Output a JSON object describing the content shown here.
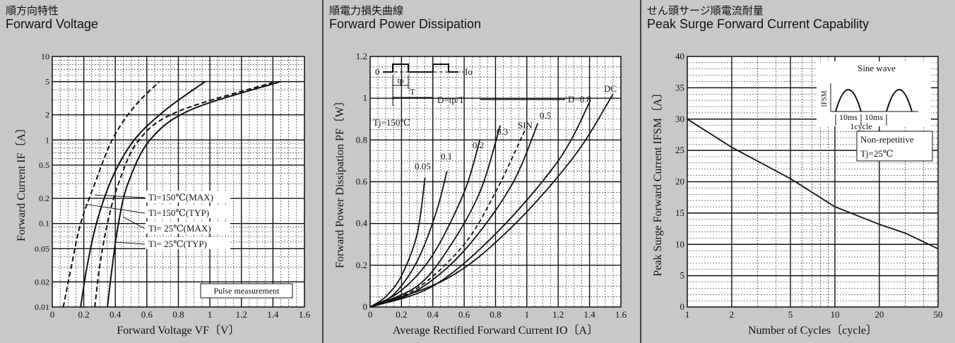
{
  "charts": [
    {
      "title_jp": "順方向特性",
      "title_en": "Forward Voltage"
    },
    {
      "title_jp": "順電力損失曲線",
      "title_en": "Forward Power Dissipation"
    },
    {
      "title_jp": "せん頭サージ順電流耐量",
      "title_en": "Peak Surge Forward Current Capability"
    }
  ],
  "chart_data": [
    {
      "type": "line",
      "title": "Forward Voltage",
      "xlabel": "Forward Voltage  VF〔V〕",
      "ylabel": "Forward Current  IF〔A〕",
      "xscale": "linear",
      "yscale": "log",
      "xlim": [
        0,
        1.6
      ],
      "ylim": [
        0.01,
        10
      ],
      "x_ticks": [
        "0",
        "0.2",
        "0.4",
        "0.6",
        "0.8",
        "1",
        "1.2",
        "1.4",
        "1.6"
      ],
      "y_ticks": [
        "0.01",
        "0.02",
        "0.05",
        "0.1",
        "0.2",
        "0.5",
        "1",
        "2",
        "5",
        "10"
      ],
      "grid": true,
      "series": [
        {
          "name": "Tl=150℃(MAX)",
          "style": "dashed",
          "points": [
            [
              0.07,
              0.01
            ],
            [
              0.12,
              0.03
            ],
            [
              0.18,
              0.1
            ],
            [
              0.27,
              0.3
            ],
            [
              0.38,
              1.0
            ],
            [
              0.52,
              2.5
            ],
            [
              0.68,
              5.0
            ]
          ]
        },
        {
          "name": "Tl=150℃(TYP)",
          "style": "solid",
          "points": [
            [
              0.18,
              0.01
            ],
            [
              0.22,
              0.03
            ],
            [
              0.28,
              0.1
            ],
            [
              0.38,
              0.35
            ],
            [
              0.52,
              1.0
            ],
            [
              0.72,
              2.3
            ],
            [
              0.97,
              5.0
            ]
          ]
        },
        {
          "name": "Tl= 25℃(MAX)",
          "style": "dashed",
          "points": [
            [
              0.27,
              0.01
            ],
            [
              0.3,
              0.03
            ],
            [
              0.35,
              0.1
            ],
            [
              0.42,
              0.3
            ],
            [
              0.55,
              1.0
            ],
            [
              0.8,
              2.2
            ],
            [
              1.42,
              5.0
            ]
          ]
        },
        {
          "name": "Tl= 25℃(TYP)",
          "style": "solid",
          "points": [
            [
              0.35,
              0.01
            ],
            [
              0.38,
              0.03
            ],
            [
              0.42,
              0.1
            ],
            [
              0.48,
              0.3
            ],
            [
              0.62,
              1.0
            ],
            [
              0.88,
              2.3
            ],
            [
              1.45,
              5.0
            ]
          ]
        }
      ],
      "legend": [
        "Tl=150℃(MAX)",
        "Tl=150℃(TYP)",
        "Tl= 25℃(MAX)",
        "Tl= 25℃(TYP)"
      ],
      "note": "Pulse measurement"
    },
    {
      "type": "line",
      "title": "Forward Power Dissipation",
      "xlabel": "Average Rectified Forward Current  IO〔A〕",
      "ylabel": "Forward Power Dissipation  PF〔W〕",
      "xlim": [
        0,
        1.6
      ],
      "ylim": [
        0,
        1.2
      ],
      "x_ticks": [
        "0",
        "0.2",
        "0.4",
        "0.6",
        "0.8",
        "1",
        "1.2",
        "1.4",
        "1.6"
      ],
      "y_ticks": [
        "0",
        "0.2",
        "0.4",
        "0.6",
        "0.8",
        "1",
        "1.2"
      ],
      "grid": true,
      "series": [
        {
          "name": "0.05",
          "style": "solid",
          "points": [
            [
              0,
              0
            ],
            [
              0.1,
              0.05
            ],
            [
              0.2,
              0.15
            ],
            [
              0.3,
              0.35
            ],
            [
              0.35,
              0.62
            ]
          ]
        },
        {
          "name": "0.1",
          "style": "solid",
          "points": [
            [
              0,
              0
            ],
            [
              0.15,
              0.06
            ],
            [
              0.3,
              0.22
            ],
            [
              0.42,
              0.45
            ],
            [
              0.49,
              0.65
            ]
          ]
        },
        {
          "name": "0.2",
          "style": "solid",
          "points": [
            [
              0,
              0
            ],
            [
              0.2,
              0.08
            ],
            [
              0.4,
              0.25
            ],
            [
              0.6,
              0.55
            ],
            [
              0.7,
              0.8
            ]
          ]
        },
        {
          "name": "0.3",
          "style": "solid",
          "points": [
            [
              0,
              0
            ],
            [
              0.3,
              0.1
            ],
            [
              0.5,
              0.28
            ],
            [
              0.7,
              0.55
            ],
            [
              0.83,
              0.87
            ]
          ]
        },
        {
          "name": "SIN",
          "style": "dashed",
          "points": [
            [
              0,
              0
            ],
            [
              0.3,
              0.09
            ],
            [
              0.6,
              0.3
            ],
            [
              0.8,
              0.55
            ],
            [
              0.99,
              0.85
            ]
          ]
        },
        {
          "name": "0.5",
          "style": "solid",
          "points": [
            [
              0,
              0
            ],
            [
              0.3,
              0.08
            ],
            [
              0.6,
              0.27
            ],
            [
              0.9,
              0.58
            ],
            [
              1.07,
              0.88
            ]
          ]
        },
        {
          "name": "0.8",
          "style": "solid",
          "points": [
            [
              0,
              0
            ],
            [
              0.4,
              0.1
            ],
            [
              0.8,
              0.35
            ],
            [
              1.2,
              0.7
            ],
            [
              1.4,
              0.98
            ]
          ]
        },
        {
          "name": "DC",
          "style": "solid",
          "points": [
            [
              0,
              0
            ],
            [
              0.5,
              0.14
            ],
            [
              0.9,
              0.38
            ],
            [
              1.3,
              0.72
            ],
            [
              1.55,
              1.02
            ]
          ]
        }
      ],
      "labels": [
        "Tj=150℃",
        "D=tp/T",
        "D=0.8",
        "Io",
        "tp",
        "T",
        "0",
        "0.05",
        "0.1",
        "0.2",
        "0.3",
        "SIN",
        "0.5",
        "DC"
      ]
    },
    {
      "type": "line",
      "title": "Peak Surge Forward Current Capability",
      "xlabel": "Number of Cycles〔cycle〕",
      "ylabel": "Peak Surge Forward Current  IFSM〔A〕",
      "xscale": "log",
      "xlim": [
        1,
        50
      ],
      "ylim": [
        0,
        40
      ],
      "x_ticks": [
        "1",
        "2",
        "5",
        "10",
        "20",
        "50"
      ],
      "y_ticks": [
        "0",
        "5",
        "10",
        "15",
        "20",
        "25",
        "30",
        "35",
        "40"
      ],
      "grid": true,
      "series": [
        {
          "name": "IFSM",
          "style": "solid",
          "points": [
            [
              1,
              30
            ],
            [
              2,
              25.5
            ],
            [
              5,
              20.5
            ],
            [
              10,
              16
            ],
            [
              20,
              13.2
            ],
            [
              30,
              11.8
            ],
            [
              50,
              9.3
            ]
          ]
        }
      ],
      "labels": [
        "Sine wave",
        "IFSM",
        "10ms",
        "10ms",
        "1cycle",
        "Non-repetitive",
        "Tj=25℃"
      ]
    }
  ]
}
